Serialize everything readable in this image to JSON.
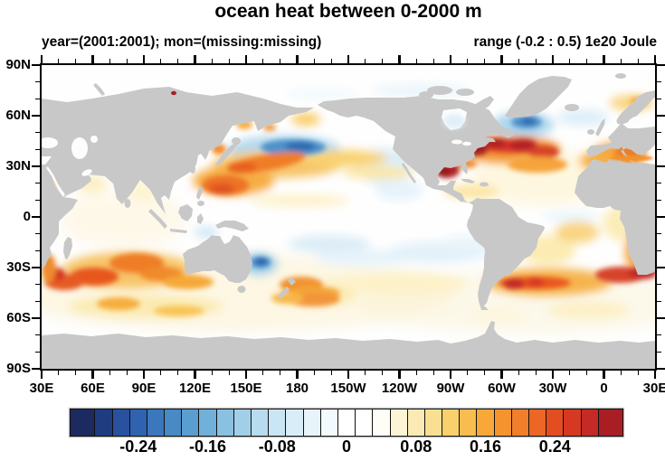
{
  "title": "ocean heat between 0-2000 m",
  "subtitle_left": "year=(2001:2001); mon=(missing:missing)",
  "subtitle_right": "range (-0.2 : 0.5) 1e20 Joule",
  "map": {
    "lat_labels": [
      "90N",
      "60N",
      "30N",
      "0",
      "30S",
      "60S",
      "90S"
    ],
    "lon_labels": [
      "30E",
      "60E",
      "90E",
      "120E",
      "150E",
      "180",
      "150W",
      "120W",
      "90W",
      "60W",
      "30W",
      "0",
      "30E"
    ],
    "land_color": "#c8c8c8",
    "ocean_color": "#fefefe",
    "frame_color": "#000000"
  },
  "colorbar": {
    "colors": [
      "#1d2a5f",
      "#203c80",
      "#2a51a0",
      "#2f63b0",
      "#3b77bd",
      "#4889c6",
      "#5a9ed1",
      "#71b0d9",
      "#8ac1e1",
      "#a2cfe8",
      "#b8dcef",
      "#cae5f3",
      "#d9edf8",
      "#e7f4fa",
      "#f3fafd",
      "#ffffff",
      "#ffffff",
      "#fefdf6",
      "#fdf4d5",
      "#fbeab3",
      "#f9df92",
      "#f9d06c",
      "#f8bd4e",
      "#f7a839",
      "#f5932f",
      "#f17e2b",
      "#ec6726",
      "#e34e21",
      "#d63822",
      "#c62a27",
      "#a81e24"
    ],
    "labels": [
      "-0.24",
      "-0.16",
      "-0.08",
      "0",
      "0.08",
      "0.16",
      "0.24"
    ],
    "label_cells": [
      3,
      7,
      11,
      15,
      19,
      23,
      27
    ]
  },
  "chart_data": {
    "type": "heatmap",
    "title": "ocean heat between 0-2000 m",
    "subtitle": "year=(2001:2001); mon=(missing:missing)",
    "units": "1e20 Joule",
    "annotated_data_range": [
      -0.2,
      0.5
    ],
    "colorbar_levels": {
      "min": -0.3,
      "max": 0.3,
      "step": 0.02,
      "labeled_values": [
        -0.24,
        -0.16,
        -0.08,
        0,
        0.08,
        0.16,
        0.24
      ]
    },
    "x_axis": {
      "tick_labels": [
        "30E",
        "60E",
        "90E",
        "120E",
        "150E",
        "180",
        "150W",
        "120W",
        "90W",
        "60W",
        "30W",
        "0",
        "30E"
      ],
      "span_degrees": [
        30,
        390
      ],
      "minor_tick_deg": 10
    },
    "y_axis": {
      "tick_labels": [
        "90N",
        "60N",
        "30N",
        "0",
        "30S",
        "60S",
        "90S"
      ],
      "span_degrees": [
        -90,
        90
      ],
      "minor_tick_deg": 10
    },
    "grid": false,
    "legend_position": "bottom-horizontal-labelbar",
    "notable_features": [
      {
        "region": "Gulf Stream / NW Atlantic 35-45N",
        "sign": "positive",
        "approx_value": 0.2
      },
      {
        "region": "Gulf of Mexico",
        "sign": "positive",
        "approx_value": 0.3
      },
      {
        "region": "Subpolar N Atlantic south of Greenland",
        "sign": "negative",
        "approx_value": -0.12
      },
      {
        "region": "Central North Pacific ~40N",
        "sign": "negative",
        "approx_value": -0.12
      },
      {
        "region": "Kuroshio extension / Philippine Sea 15-35N",
        "sign": "positive",
        "approx_value": 0.12
      },
      {
        "region": "South Indian Ocean 25-45S",
        "sign": "positive",
        "approx_value": 0.14
      },
      {
        "region": "South Atlantic 35-45S",
        "sign": "positive",
        "approx_value": 0.18
      },
      {
        "region": "Benguela / SE Atlantic coast",
        "sign": "positive",
        "approx_value": 0.16
      },
      {
        "region": "Tasman Sea east of Australia",
        "sign": "negative",
        "approx_value": -0.12
      },
      {
        "region": "Southeast Pacific ~20S",
        "sign": "negative",
        "approx_value": -0.04
      },
      {
        "region": "Equatorial oceans",
        "sign": "near-zero",
        "approx_value": 0.0
      }
    ]
  }
}
